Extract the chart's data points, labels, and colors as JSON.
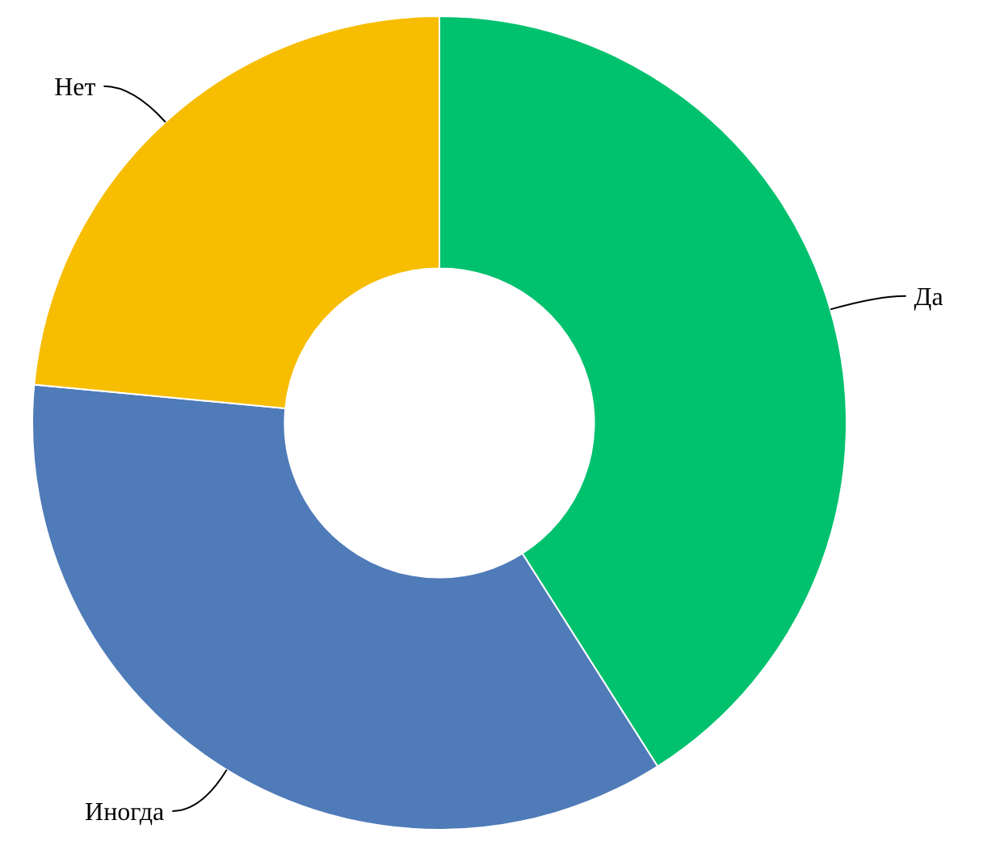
{
  "chart_data": {
    "type": "donut",
    "categories": [
      "Да",
      "Иногда",
      "Нет"
    ],
    "values": [
      41,
      35.5,
      23.5
    ],
    "colors": [
      "#00c16e",
      "#4f7bb8",
      "#f7bd00"
    ]
  }
}
